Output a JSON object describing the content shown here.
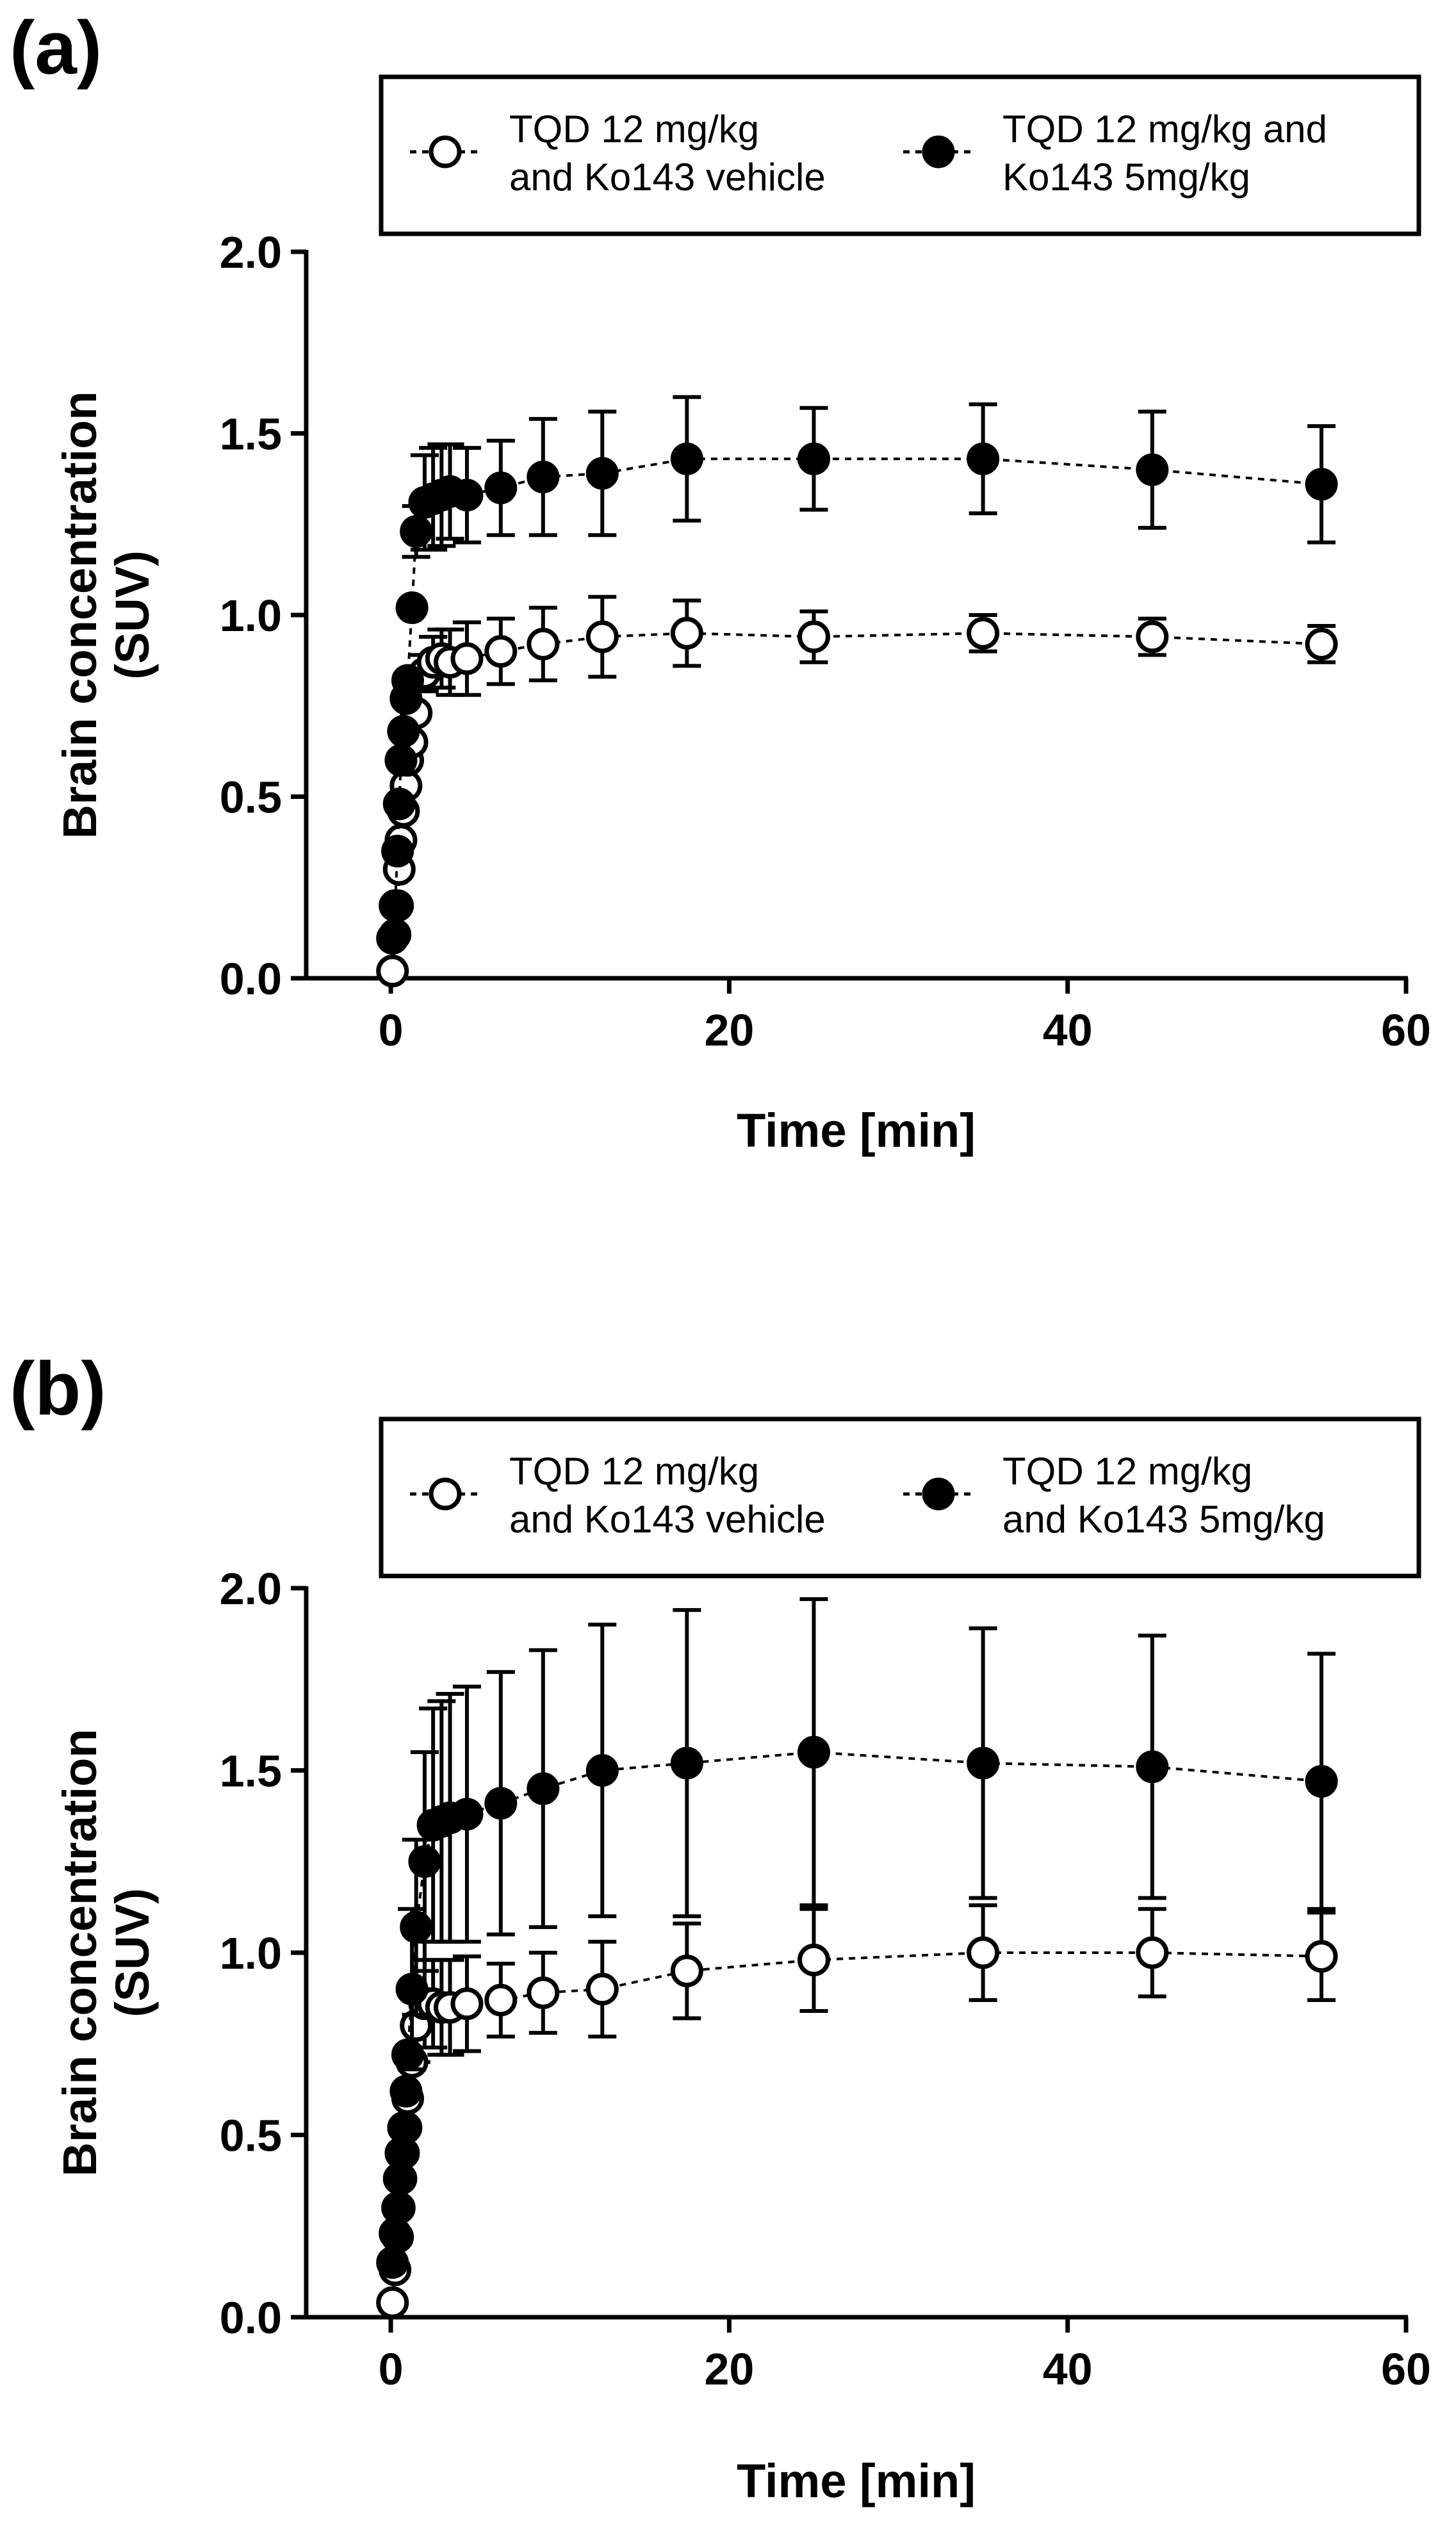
{
  "chart_data": [
    {
      "panel_label": "(a)",
      "type": "scatter",
      "xlabel": "Time [min]",
      "ylabel_line1": "Brain concentration",
      "ylabel_line2": "(SUV)",
      "xlim": [
        -5,
        60
      ],
      "ylim": [
        0,
        2.0
      ],
      "xticks": [
        0,
        20,
        40,
        60
      ],
      "xtick_labels": [
        "0",
        "20",
        "40",
        "60"
      ],
      "yticks": [
        0,
        0.5,
        1.0,
        1.5,
        2.0
      ],
      "ytick_labels": [
        "0.0",
        "0.5",
        "1.0",
        "1.5",
        "2.0"
      ],
      "legend_position": "top",
      "series": [
        {
          "name_line1": "TQD 12 mg/kg",
          "name_line2": "and Ko143 vehicle",
          "marker": "open-circle",
          "line": "dashed",
          "x": [
            0.1,
            0.25,
            0.4,
            0.5,
            0.6,
            0.75,
            0.9,
            1.0,
            1.25,
            1.5,
            2,
            2.5,
            3,
            3.5,
            4.5,
            6.5,
            9,
            12.5,
            17.5,
            25,
            35,
            45,
            55
          ],
          "y": [
            0.02,
            0.12,
            0.2,
            0.3,
            0.38,
            0.46,
            0.53,
            0.6,
            0.65,
            0.73,
            0.84,
            0.87,
            0.88,
            0.87,
            0.88,
            0.9,
            0.92,
            0.94,
            0.95,
            0.94,
            0.95,
            0.94,
            0.92
          ],
          "err": [
            0,
            0,
            0,
            0,
            0,
            0,
            0,
            0,
            0,
            0,
            0.05,
            0.07,
            0.08,
            0.09,
            0.1,
            0.09,
            0.1,
            0.11,
            0.09,
            0.07,
            0.05,
            0.05,
            0.05
          ]
        },
        {
          "name_line1": "TQD 12 mg/kg and",
          "name_line2": "Ko143 5mg/kg",
          "marker": "filled-circle",
          "line": "dashed",
          "x": [
            0.1,
            0.25,
            0.4,
            0.5,
            0.6,
            0.75,
            0.9,
            1.0,
            1.25,
            1.5,
            2,
            2.5,
            3,
            3.5,
            4.5,
            6.5,
            9,
            12.5,
            17.5,
            25,
            35,
            45,
            55
          ],
          "y": [
            0.11,
            0.2,
            0.35,
            0.48,
            0.6,
            0.68,
            0.77,
            0.82,
            1.02,
            1.23,
            1.31,
            1.32,
            1.33,
            1.34,
            1.33,
            1.35,
            1.38,
            1.39,
            1.43,
            1.43,
            1.43,
            1.4,
            1.36
          ],
          "err": [
            0,
            0,
            0,
            0,
            0,
            0,
            0,
            0,
            0,
            0.07,
            0.13,
            0.14,
            0.14,
            0.13,
            0.13,
            0.13,
            0.16,
            0.17,
            0.17,
            0.14,
            0.15,
            0.16,
            0.16
          ]
        }
      ]
    },
    {
      "panel_label": "(b)",
      "type": "scatter",
      "xlabel": "Time [min]",
      "ylabel_line1": "Brain concentration",
      "ylabel_line2": "(SUV)",
      "xlim": [
        -5,
        60
      ],
      "ylim": [
        0,
        2.0
      ],
      "xticks": [
        0,
        20,
        40,
        60
      ],
      "xtick_labels": [
        "0",
        "20",
        "40",
        "60"
      ],
      "yticks": [
        0,
        0.5,
        1.0,
        1.5,
        2.0
      ],
      "ytick_labels": [
        "0.0",
        "0.5",
        "1.0",
        "1.5",
        "2.0"
      ],
      "legend_position": "top",
      "series": [
        {
          "name_line1": "TQD 12 mg/kg",
          "name_line2": "and Ko143 vehicle",
          "marker": "open-circle",
          "line": "dashed",
          "x": [
            0.1,
            0.25,
            0.4,
            0.5,
            0.6,
            0.75,
            0.9,
            1.0,
            1.25,
            1.5,
            2,
            2.5,
            3,
            3.5,
            4.5,
            6.5,
            9,
            12.5,
            17.5,
            25,
            35,
            45,
            55
          ],
          "y": [
            0.04,
            0.13,
            0.22,
            0.3,
            0.38,
            0.45,
            0.52,
            0.6,
            0.7,
            0.8,
            0.86,
            0.86,
            0.85,
            0.85,
            0.86,
            0.87,
            0.89,
            0.9,
            0.95,
            0.98,
            1.0,
            1.0,
            0.99
          ],
          "err": [
            0,
            0,
            0,
            0,
            0,
            0,
            0,
            0,
            0,
            0.1,
            0.12,
            0.12,
            0.13,
            0.13,
            0.13,
            0.1,
            0.11,
            0.13,
            0.13,
            0.14,
            0.13,
            0.12,
            0.12
          ]
        },
        {
          "name_line1": "TQD 12 mg/kg",
          "name_line2": "and Ko143 5mg/kg",
          "marker": "filled-circle",
          "line": "dashed",
          "x": [
            0.1,
            0.25,
            0.4,
            0.5,
            0.6,
            0.75,
            0.9,
            1.0,
            1.25,
            1.5,
            2,
            2.5,
            3,
            3.5,
            4.5,
            6.5,
            9,
            12.5,
            17.5,
            25,
            35,
            45,
            55
          ],
          "y": [
            0.15,
            0.23,
            0.3,
            0.38,
            0.45,
            0.52,
            0.62,
            0.72,
            0.9,
            1.07,
            1.25,
            1.35,
            1.36,
            1.37,
            1.38,
            1.41,
            1.45,
            1.5,
            1.52,
            1.55,
            1.52,
            1.51,
            1.47
          ],
          "err": [
            0,
            0,
            0,
            0,
            0,
            0,
            0,
            0,
            0.22,
            0.24,
            0.3,
            0.32,
            0.33,
            0.34,
            0.35,
            0.36,
            0.38,
            0.4,
            0.42,
            0.42,
            0.37,
            0.36,
            0.35
          ]
        }
      ]
    }
  ]
}
